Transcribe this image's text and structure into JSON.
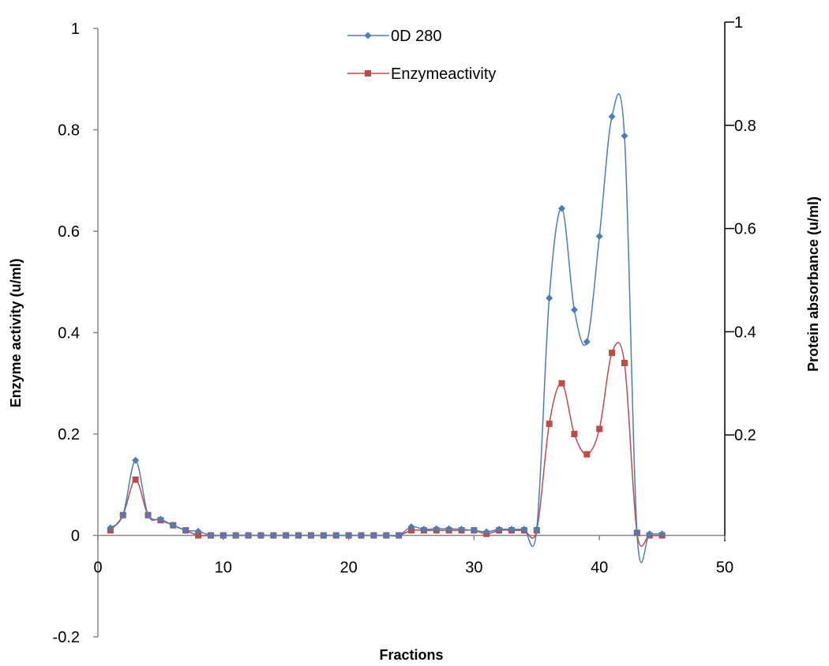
{
  "chart_data": {
    "type": "line",
    "xlabel": "Fractions",
    "ylabel_left": "Enzyme activity (u/ml)",
    "ylabel_right": "Protein absorbance (u/ml)",
    "xlim": [
      0,
      50
    ],
    "xticks": [
      0,
      10,
      20,
      30,
      40,
      50
    ],
    "ylim_left": [
      -0.2,
      1
    ],
    "yticks_left": [
      -0.2,
      0,
      0.2,
      0.4,
      0.6,
      0.8,
      1
    ],
    "ylim_right": [
      0,
      1
    ],
    "yticks_right": [
      0.2,
      0.4,
      0.6,
      0.8,
      1
    ],
    "grid": false,
    "legend_position": "top-center",
    "series": [
      {
        "name": "0D 280",
        "color": "#4a7ebb",
        "marker": "diamond",
        "x": [
          1,
          2,
          3,
          4,
          5,
          6,
          7,
          8,
          9,
          10,
          11,
          12,
          13,
          14,
          15,
          16,
          17,
          18,
          19,
          20,
          21,
          22,
          23,
          24,
          25,
          26,
          27,
          28,
          29,
          30,
          31,
          32,
          33,
          34,
          35,
          36,
          37,
          38,
          39,
          40,
          41,
          42,
          43,
          44,
          45
        ],
        "values": [
          0.015,
          0.04,
          0.148,
          0.04,
          0.032,
          0.02,
          0.01,
          0.008,
          0,
          0,
          0,
          0,
          0,
          0,
          0,
          0,
          0,
          0,
          0,
          0,
          0,
          0,
          0,
          0,
          0.017,
          0.012,
          0.013,
          0.013,
          0.012,
          0.01,
          0.007,
          0.012,
          0.012,
          0.012,
          0.012,
          0.468,
          0.645,
          0.445,
          0.382,
          0.59,
          0.826,
          0.788,
          0.005,
          0.003,
          0.003
        ]
      },
      {
        "name": "Enzymeactivity",
        "color": "#be4b48",
        "marker": "square",
        "x": [
          1,
          2,
          3,
          4,
          5,
          6,
          7,
          8,
          9,
          10,
          11,
          12,
          13,
          14,
          15,
          16,
          17,
          18,
          19,
          20,
          21,
          22,
          23,
          24,
          25,
          26,
          27,
          28,
          29,
          30,
          31,
          32,
          33,
          34,
          35,
          36,
          37,
          38,
          39,
          40,
          41,
          42,
          43,
          44,
          45
        ],
        "values": [
          0.01,
          0.04,
          0.11,
          0.04,
          0.03,
          0.02,
          0.01,
          0,
          0,
          0,
          0,
          0,
          0,
          0,
          0,
          0,
          0,
          0,
          0,
          0,
          0,
          0,
          0,
          0,
          0.01,
          0.01,
          0.01,
          0.01,
          0.01,
          0.01,
          0.003,
          0.01,
          0.01,
          0.01,
          0.01,
          0.22,
          0.3,
          0.2,
          0.16,
          0.21,
          0.36,
          0.34,
          0.005,
          0,
          0
        ]
      }
    ]
  }
}
